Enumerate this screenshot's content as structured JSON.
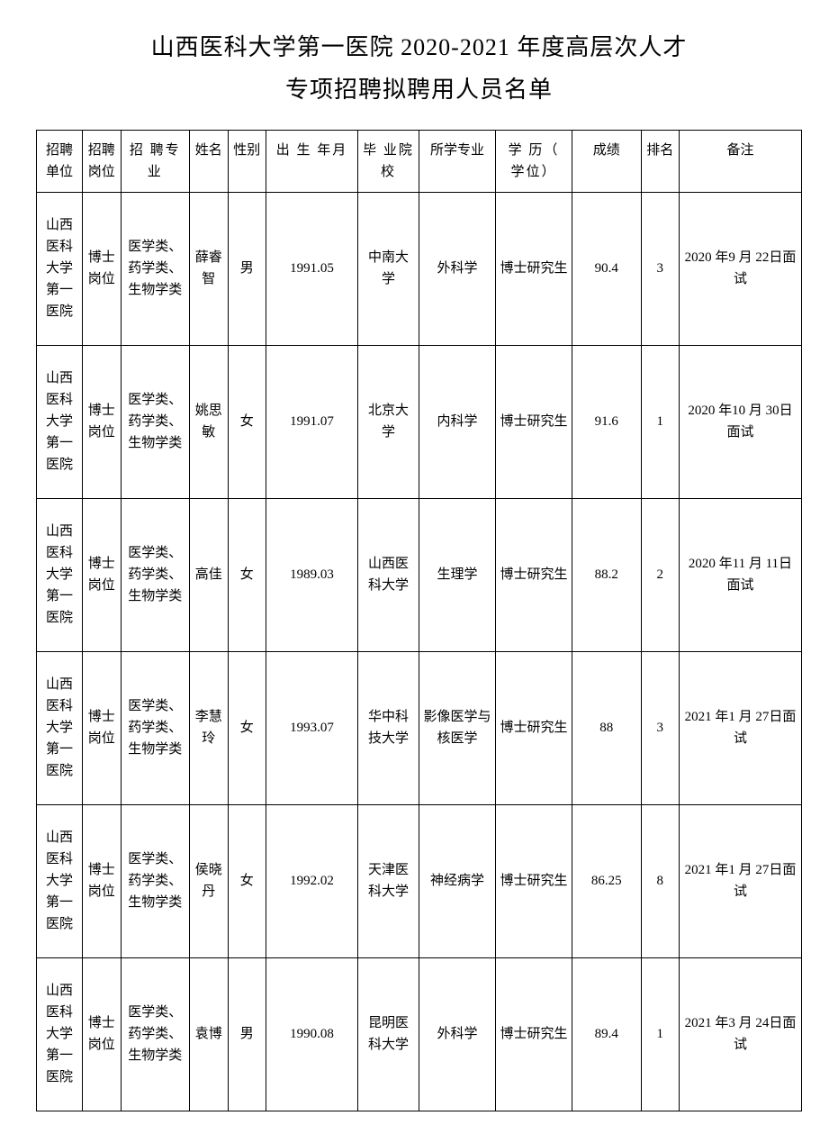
{
  "title_line1": "山西医科大学第一医院 2020-2021 年度高层次人才",
  "title_line2": "专项招聘拟聘用人员名单",
  "headers": {
    "unit": "招聘单位",
    "position": "招聘岗位",
    "major": "招 聘专业",
    "name": "姓名",
    "gender": "性别",
    "birth": "出 生 年月",
    "school": "毕 业院校",
    "field": "所学专业",
    "degree": "学 历（ 学位）",
    "score": "成绩",
    "rank": "排名",
    "remark": "备注"
  },
  "rows": [
    {
      "unit": "山西医科大学第一医院",
      "position": "博士岗位",
      "major": "医学类、药学类、生物学类",
      "name": "薛睿智",
      "gender": "男",
      "birth": "1991.05",
      "school": "中南大学",
      "field": "外科学",
      "degree": "博士研究生",
      "score": "90.4",
      "rank": "3",
      "remark": "2020 年9 月 22日面试"
    },
    {
      "unit": "山西医科大学第一医院",
      "position": "博士岗位",
      "major": "医学类、药学类、生物学类",
      "name": "姚思敏",
      "gender": "女",
      "birth": "1991.07",
      "school": "北京大学",
      "field": "内科学",
      "degree": "博士研究生",
      "score": "91.6",
      "rank": "1",
      "remark": "2020 年10 月 30日面试"
    },
    {
      "unit": "山西医科大学第一医院",
      "position": "博士岗位",
      "major": "医学类、药学类、生物学类",
      "name": "高佳",
      "gender": "女",
      "birth": "1989.03",
      "school": "山西医科大学",
      "field": "生理学",
      "degree": "博士研究生",
      "score": "88.2",
      "rank": "2",
      "remark": "2020 年11 月 11日面试"
    },
    {
      "unit": "山西医科大学第一医院",
      "position": "博士岗位",
      "major": "医学类、药学类、生物学类",
      "name": "李慧玲",
      "gender": "女",
      "birth": "1993.07",
      "school": "华中科技大学",
      "field": "影像医学与核医学",
      "degree": "博士研究生",
      "score": "88",
      "rank": "3",
      "remark": "2021 年1 月 27日面试"
    },
    {
      "unit": "山西医科大学第一医院",
      "position": "博士岗位",
      "major": "医学类、药学类、生物学类",
      "name": "侯晓丹",
      "gender": "女",
      "birth": "1992.02",
      "school": "天津医科大学",
      "field": "神经病学",
      "degree": "博士研究生",
      "score": "86.25",
      "rank": "8",
      "remark": "2021 年1 月 27日面试"
    },
    {
      "unit": "山西医科大学第一医院",
      "position": "博士岗位",
      "major": "医学类、药学类、生物学类",
      "name": "袁博",
      "gender": "男",
      "birth": "1990.08",
      "school": "昆明医科大学",
      "field": "外科学",
      "degree": "博士研究生",
      "score": "89.4",
      "rank": "1",
      "remark": "2021 年3 月 24日面试"
    }
  ]
}
